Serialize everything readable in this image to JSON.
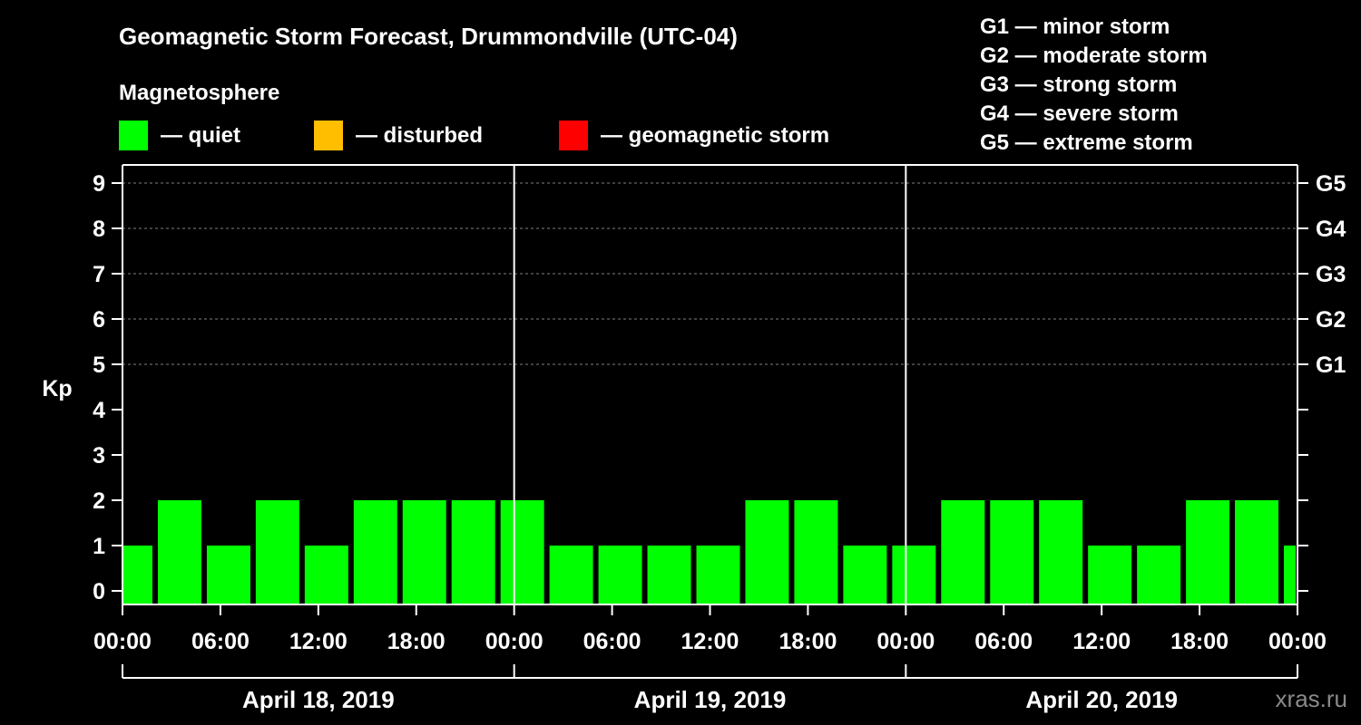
{
  "chart_data": {
    "type": "bar",
    "title": "Geomagnetic Storm Forecast, Drummondville (UTC-04)",
    "ylabel": "Kp",
    "ylim": [
      0,
      9
    ],
    "yticks": [
      "0",
      "1",
      "2",
      "3",
      "4",
      "5",
      "6",
      "7",
      "8",
      "9"
    ],
    "right_axis": [
      {
        "kp": 5,
        "label": "G1"
      },
      {
        "kp": 6,
        "label": "G2"
      },
      {
        "kp": 7,
        "label": "G3"
      },
      {
        "kp": 8,
        "label": "G4"
      },
      {
        "kp": 9,
        "label": "G5"
      }
    ],
    "xlim_hours": [
      0,
      72
    ],
    "x_ticks": [
      {
        "hour": 0,
        "label": "00:00"
      },
      {
        "hour": 6,
        "label": "06:00"
      },
      {
        "hour": 12,
        "label": "12:00"
      },
      {
        "hour": 18,
        "label": "18:00"
      },
      {
        "hour": 24,
        "label": "00:00"
      },
      {
        "hour": 30,
        "label": "06:00"
      },
      {
        "hour": 36,
        "label": "12:00"
      },
      {
        "hour": 42,
        "label": "18:00"
      },
      {
        "hour": 48,
        "label": "00:00"
      },
      {
        "hour": 54,
        "label": "06:00"
      },
      {
        "hour": 60,
        "label": "12:00"
      },
      {
        "hour": 66,
        "label": "18:00"
      },
      {
        "hour": 72,
        "label": "00:00"
      }
    ],
    "days": [
      {
        "label": "April 18, 2019",
        "start_hour": 0,
        "end_hour": 24
      },
      {
        "label": "April 19, 2019",
        "start_hour": 24,
        "end_hour": 48
      },
      {
        "label": "April 20, 2019",
        "start_hour": 48,
        "end_hour": 72
      }
    ],
    "bars": [
      {
        "start_hour": 0,
        "end_hour": 2,
        "kp": 1
      },
      {
        "start_hour": 2,
        "end_hour": 5,
        "kp": 2
      },
      {
        "start_hour": 5,
        "end_hour": 8,
        "kp": 1
      },
      {
        "start_hour": 8,
        "end_hour": 11,
        "kp": 2
      },
      {
        "start_hour": 11,
        "end_hour": 14,
        "kp": 1
      },
      {
        "start_hour": 14,
        "end_hour": 17,
        "kp": 2
      },
      {
        "start_hour": 17,
        "end_hour": 20,
        "kp": 2
      },
      {
        "start_hour": 20,
        "end_hour": 23,
        "kp": 2
      },
      {
        "start_hour": 23,
        "end_hour": 26,
        "kp": 2
      },
      {
        "start_hour": 26,
        "end_hour": 29,
        "kp": 1
      },
      {
        "start_hour": 29,
        "end_hour": 32,
        "kp": 1
      },
      {
        "start_hour": 32,
        "end_hour": 35,
        "kp": 1
      },
      {
        "start_hour": 35,
        "end_hour": 38,
        "kp": 1
      },
      {
        "start_hour": 38,
        "end_hour": 41,
        "kp": 2
      },
      {
        "start_hour": 41,
        "end_hour": 44,
        "kp": 2
      },
      {
        "start_hour": 44,
        "end_hour": 47,
        "kp": 1
      },
      {
        "start_hour": 47,
        "end_hour": 50,
        "kp": 1
      },
      {
        "start_hour": 50,
        "end_hour": 53,
        "kp": 2
      },
      {
        "start_hour": 53,
        "end_hour": 56,
        "kp": 2
      },
      {
        "start_hour": 56,
        "end_hour": 59,
        "kp": 2
      },
      {
        "start_hour": 59,
        "end_hour": 62,
        "kp": 1
      },
      {
        "start_hour": 62,
        "end_hour": 65,
        "kp": 1
      },
      {
        "start_hour": 65,
        "end_hour": 68,
        "kp": 2
      },
      {
        "start_hour": 68,
        "end_hour": 71,
        "kp": 2
      },
      {
        "start_hour": 71,
        "end_hour": 72,
        "kp": 1
      }
    ],
    "legend": {
      "heading": "Magnetosphere",
      "items": [
        {
          "label": "— quiet",
          "color": "#00ff00"
        },
        {
          "label": "— disturbed",
          "color": "#ffbf00"
        },
        {
          "label": "— geomagnetic storm",
          "color": "#ff0000"
        }
      ]
    },
    "storm_scale": [
      "G1 — minor storm",
      "G2 — moderate storm",
      "G3 — strong storm",
      "G4 — severe storm",
      "G5 — extreme storm"
    ],
    "colors": {
      "quiet": "#00ff00",
      "disturbed": "#ffbf00",
      "storm": "#ff0000",
      "background": "#000000",
      "axis": "#ffffff",
      "grid": "#808080"
    }
  },
  "watermark": "xras.ru"
}
